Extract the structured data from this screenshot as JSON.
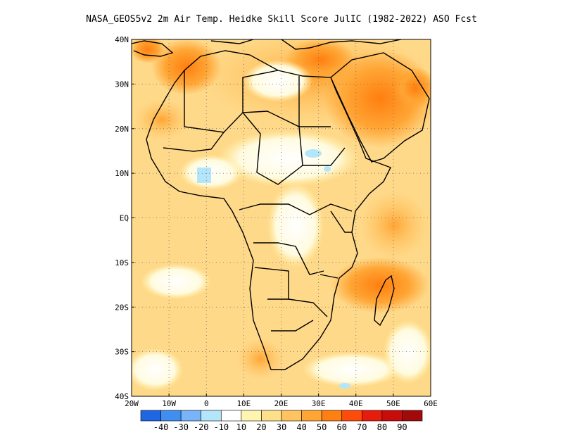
{
  "title": "NASA_GEOS5v2  2m Air Temp. Heidke Skill Score JulIC (1982-2022) ASO Fcst",
  "map": {
    "lat_ticks": [
      "40N",
      "30N",
      "20N",
      "10N",
      "EQ",
      "10S",
      "20S",
      "30S",
      "40S"
    ],
    "lon_ticks": [
      "20W",
      "10W",
      "0",
      "10E",
      "20E",
      "30E",
      "40E",
      "50E",
      "60E"
    ],
    "lon_range": [
      -20,
      60
    ],
    "lat_range": [
      -40,
      40
    ],
    "grid": "dotted"
  },
  "colorbar": {
    "colors": [
      "#1f66e5",
      "#3f8ef0",
      "#78b4f7",
      "#b4e6fb",
      "#ffffff",
      "#fff5b0",
      "#ffe08a",
      "#ffc45e",
      "#ffa534",
      "#ff7f10",
      "#ff4b0a",
      "#e81c0c",
      "#c80c0c",
      "#a00a0a"
    ],
    "labels": [
      "-40",
      "-30",
      "-20",
      "-10",
      "10",
      "20",
      "30",
      "40",
      "50",
      "60",
      "70",
      "80",
      "90"
    ]
  }
}
